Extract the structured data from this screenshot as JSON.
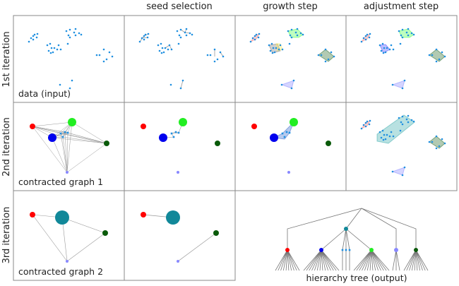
{
  "columns": [
    "seed selection",
    "growth step",
    "adjustment step"
  ],
  "rows": [
    "1st iteration",
    "2nd iteration",
    "3rd iteration"
  ],
  "captions": {
    "data_input": "data (input)",
    "contracted_graph_1": "contracted graph 1",
    "contracted_graph_2": "contracted graph 2",
    "hierarchy_tree": "hierarchy tree (output)"
  },
  "colors": {
    "point": "#1f8fe0",
    "red": "#ff0000",
    "green": "#22ee22",
    "blue": "#0000ee",
    "dark_green": "#0a5a0a",
    "lavender": "#8888ff",
    "teal": "#118899",
    "edge": "#999999"
  }
}
